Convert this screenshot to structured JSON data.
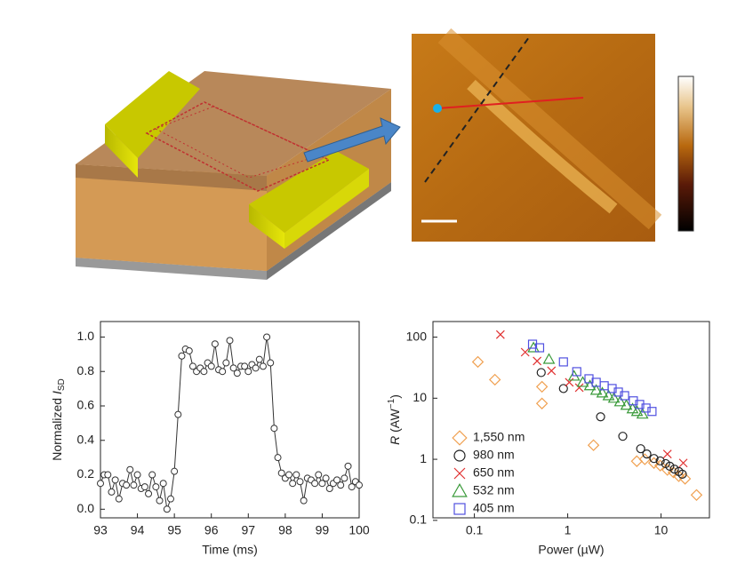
{
  "chart_data": [
    {
      "type": "line",
      "xlabel": "Time (ms)",
      "ylabel_parts": [
        "Normalized ",
        "I",
        "SD"
      ],
      "x": [
        93.0,
        93.1,
        93.2,
        93.3,
        93.4,
        93.5,
        93.6,
        93.7,
        93.8,
        93.9,
        94.0,
        94.1,
        94.2,
        94.3,
        94.4,
        94.5,
        94.6,
        94.7,
        94.8,
        94.9,
        95.0,
        95.1,
        95.2,
        95.3,
        95.4,
        95.5,
        95.6,
        95.7,
        95.8,
        95.9,
        96.0,
        96.1,
        96.2,
        96.3,
        96.4,
        96.5,
        96.6,
        96.7,
        96.8,
        96.9,
        97.0,
        97.1,
        97.2,
        97.3,
        97.4,
        97.5,
        97.6,
        97.7,
        97.8,
        97.9,
        98.0,
        98.1,
        98.2,
        98.3,
        98.4,
        98.5,
        98.6,
        98.7,
        98.8,
        98.9,
        99.0,
        99.1,
        99.2,
        99.3,
        99.4,
        99.5,
        99.6,
        99.7,
        99.8,
        99.9,
        100.0
      ],
      "values": [
        0.15,
        0.2,
        0.2,
        0.1,
        0.17,
        0.06,
        0.15,
        0.14,
        0.23,
        0.14,
        0.2,
        0.12,
        0.13,
        0.09,
        0.2,
        0.13,
        0.05,
        0.15,
        0.0,
        0.06,
        0.22,
        0.55,
        0.89,
        0.93,
        0.92,
        0.83,
        0.8,
        0.82,
        0.8,
        0.85,
        0.83,
        0.96,
        0.81,
        0.8,
        0.85,
        0.98,
        0.82,
        0.79,
        0.83,
        0.83,
        0.8,
        0.84,
        0.82,
        0.87,
        0.83,
        1.0,
        0.85,
        0.47,
        0.3,
        0.21,
        0.18,
        0.2,
        0.15,
        0.2,
        0.16,
        0.05,
        0.18,
        0.17,
        0.15,
        0.2,
        0.15,
        0.18,
        0.12,
        0.15,
        0.17,
        0.14,
        0.18,
        0.25,
        0.13,
        0.16,
        0.14
      ],
      "color": "#333333",
      "xlim": [
        93,
        100
      ],
      "xticks": [
        93,
        94,
        95,
        96,
        97,
        98,
        99,
        100
      ],
      "ylim": [
        -0.05,
        1.09
      ],
      "yticks": [
        {
          "value": 0,
          "label": "0.0"
        },
        {
          "value": 0.2,
          "label": "0.2"
        },
        {
          "value": 0.4,
          "label": "0.4"
        },
        {
          "value": 0.6,
          "label": "0.6"
        },
        {
          "value": 0.8,
          "label": "0.8"
        },
        {
          "value": 1,
          "label": "1.0"
        }
      ]
    },
    {
      "type": "scatter",
      "xlabel": "Power (µW)",
      "ylabel_parts": [
        "R",
        " (AW",
        "−1",
        ")"
      ],
      "log_x": true,
      "log_y": true,
      "legend": "lower left",
      "xlim": [
        0.036,
        33
      ],
      "xticks": [
        0.1,
        1,
        10
      ],
      "ylim": [
        0.11,
        180
      ],
      "yticks": [
        0.1,
        1,
        10,
        100
      ],
      "series": [
        {
          "name": "1,550 nm",
          "color": "#f0a050",
          "marker": "diamond",
          "x": [
            0.109,
            0.166,
            0.53,
            0.53,
            1.89,
            5.5,
            6.7,
            8.4,
            9.8,
            11.7,
            13.6,
            15.5,
            18.1,
            24
          ],
          "values": [
            39.3,
            20.1,
            15.4,
            8.2,
            1.7,
            0.93,
            1.0,
            0.87,
            0.79,
            0.67,
            0.61,
            0.53,
            0.48,
            0.26
          ]
        },
        {
          "name": "980 nm",
          "color": "#222222",
          "marker": "circle",
          "x": [
            0.52,
            0.9,
            2.25,
            3.89,
            6.05,
            7.04,
            8.4,
            9.8,
            11.2,
            12.4,
            13.9,
            15.5,
            16.9
          ],
          "values": [
            26.3,
            14.4,
            4.96,
            2.38,
            1.49,
            1.22,
            1.03,
            0.94,
            0.85,
            0.77,
            0.69,
            0.63,
            0.57
          ]
        },
        {
          "name": "650 nm",
          "color": "#e03030",
          "marker": "x",
          "x": [
            0.19,
            0.35,
            0.47,
            0.67,
            1.04,
            1.33,
            11.7,
            17.3
          ],
          "values": [
            110,
            56.7,
            40.6,
            28.1,
            18.2,
            14.9,
            1.22,
            0.87
          ]
        },
        {
          "name": "532 nm",
          "color": "#3a9a3a",
          "marker": "triangle",
          "x": [
            0.43,
            0.63,
            1.17,
            1.45,
            1.73,
            2.02,
            2.35,
            2.74,
            3.13,
            3.64,
            4.25,
            4.95,
            5.53,
            6.32
          ],
          "values": [
            67,
            43.4,
            23,
            18.2,
            16,
            13.5,
            12.2,
            11,
            10,
            8.75,
            7.66,
            6.7,
            6.07,
            5.5
          ]
        },
        {
          "name": "405 nm",
          "color": "#5050e0",
          "marker": "square",
          "x": [
            0.42,
            0.5,
            0.9,
            1.25,
            1.69,
            2.02,
            2.46,
            2.99,
            3.49,
            4.07,
            5.05,
            5.9,
            6.9,
            8.0
          ],
          "values": [
            76.6,
            67,
            39.3,
            27.2,
            20.8,
            18.2,
            16,
            14.4,
            12.6,
            11,
            9.06,
            7.9,
            6.9,
            6.07
          ]
        }
      ]
    }
  ]
}
